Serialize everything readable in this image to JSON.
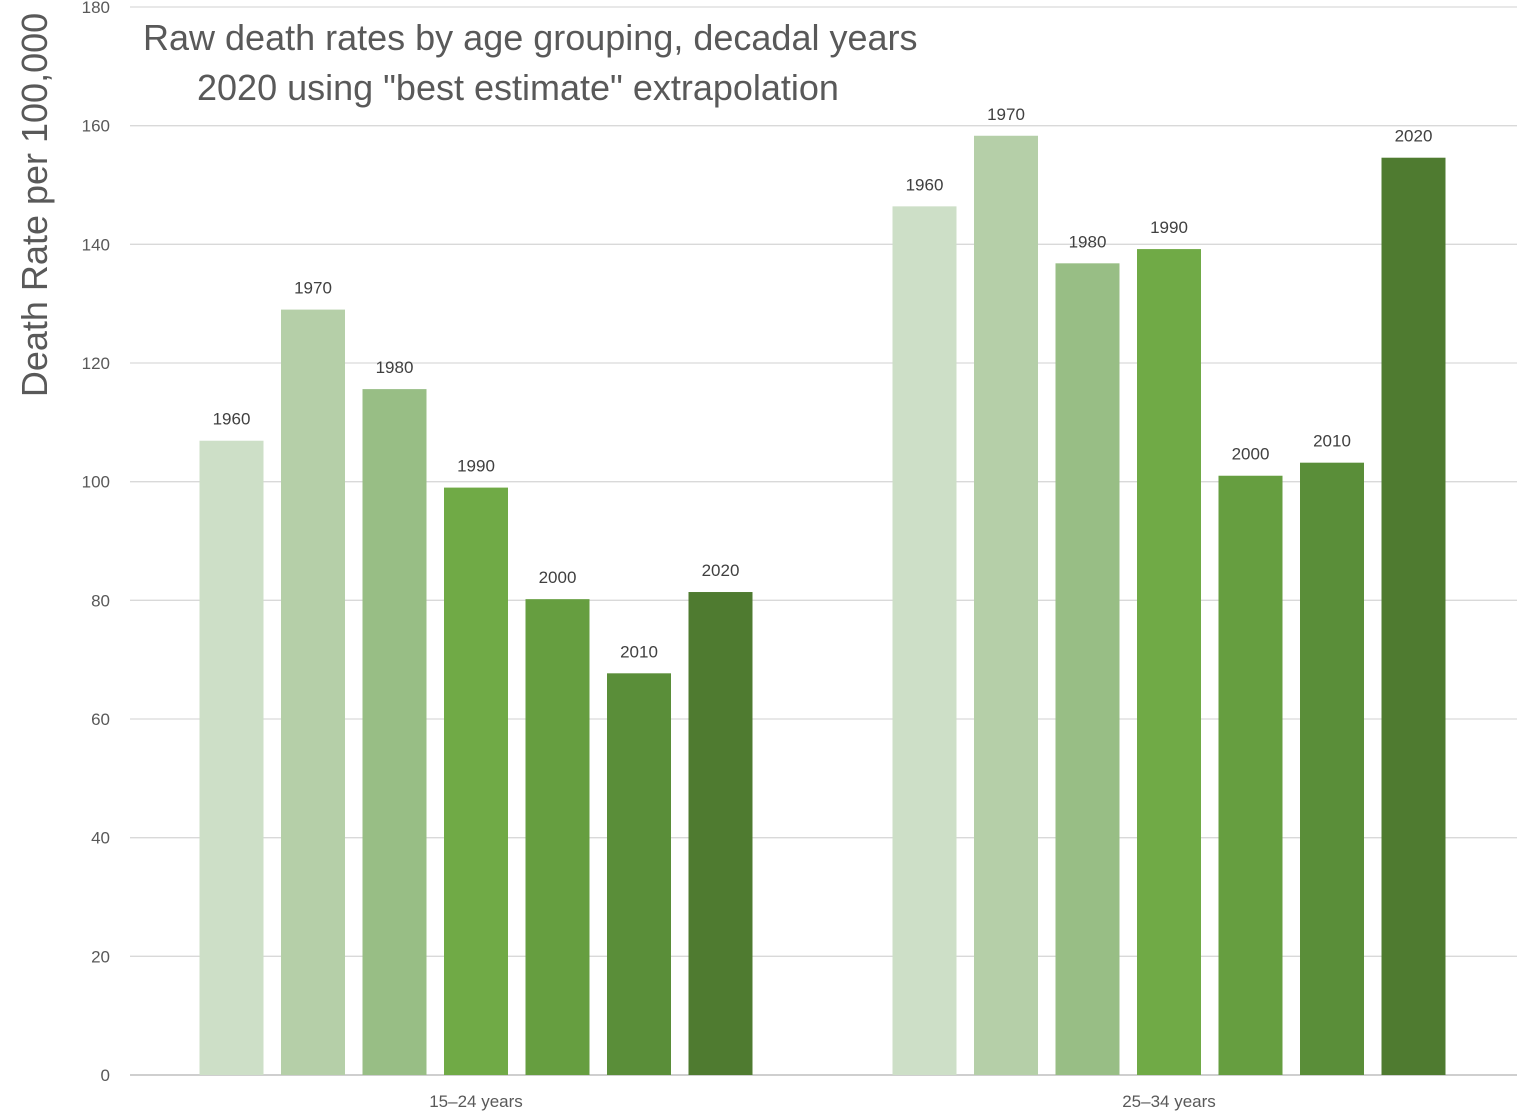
{
  "chart_data": {
    "type": "bar",
    "title": "Raw death rates by age grouping, decadal years",
    "subtitle": "2020 using \"best estimate\" extrapolation",
    "xlabel": "",
    "ylabel": "Death Rate per 100,000",
    "ylim": [
      0,
      180
    ],
    "yticks": [
      "0",
      "20",
      "40",
      "60",
      "80",
      "100",
      "120",
      "140",
      "160",
      "180"
    ],
    "grid": true,
    "data_labels": "series name above each bar",
    "categories": [
      "15–24 years",
      "25–34 years"
    ],
    "series": [
      {
        "name": "1960",
        "color": "#cddfc7",
        "values": [
          106.9,
          146.4
        ]
      },
      {
        "name": "1970",
        "color": "#b5cfa8",
        "values": [
          129.0,
          158.3
        ]
      },
      {
        "name": "1980",
        "color": "#98be85",
        "values": [
          115.6,
          136.8
        ]
      },
      {
        "name": "1990",
        "color": "#70aa46",
        "values": [
          99.0,
          139.2
        ]
      },
      {
        "name": "2000",
        "color": "#669e40",
        "values": [
          80.2,
          101.0
        ]
      },
      {
        "name": "2010",
        "color": "#5a8e39",
        "values": [
          67.7,
          103.2
        ]
      },
      {
        "name": "2020",
        "color": "#4f7b30",
        "values": [
          81.4,
          154.6
        ]
      }
    ]
  }
}
